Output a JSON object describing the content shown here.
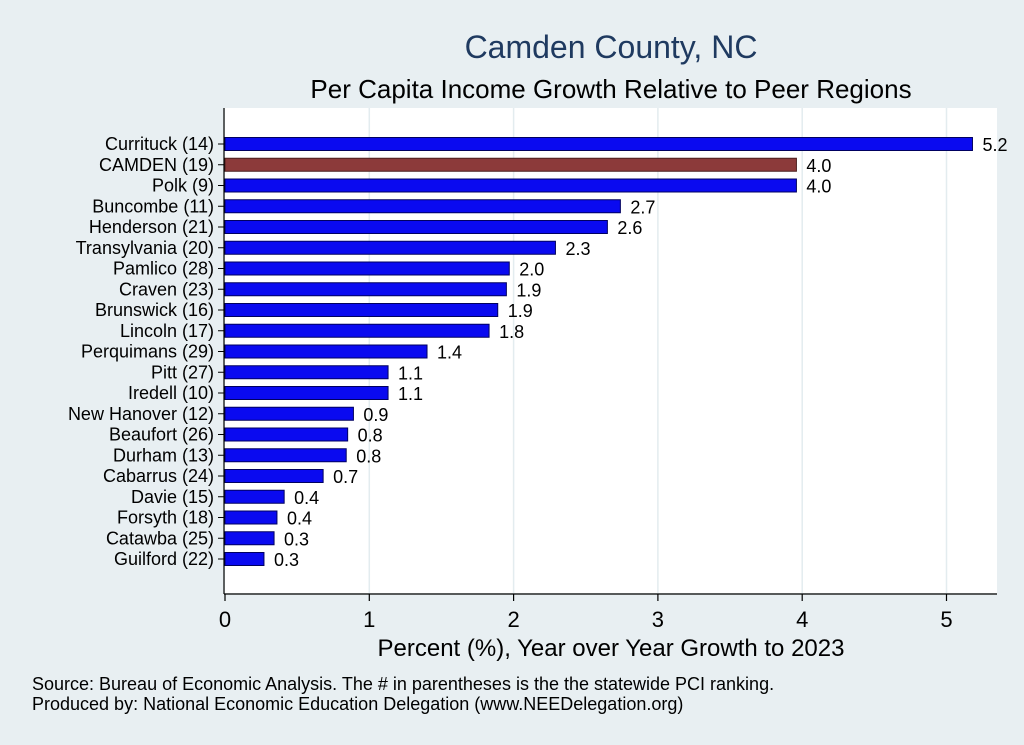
{
  "chart_data": {
    "type": "bar",
    "orientation": "horizontal",
    "title": "Camden County, NC",
    "subtitle": "Per Capita Income Growth Relative to Peer Regions",
    "xlabel": "Percent (%), Year over Year Growth to 2023",
    "xlim": [
      0,
      5.35
    ],
    "xticks": [
      "0",
      "1",
      "2",
      "3",
      "4",
      "5"
    ],
    "grid": true,
    "categories": [
      "Currituck (14)",
      "CAMDEN (19)",
      "Polk  (9)",
      "Buncombe (11)",
      "Henderson (21)",
      "Transylvania (20)",
      "Pamlico (28)",
      "Craven (23)",
      "Brunswick (16)",
      "Lincoln (17)",
      "Perquimans (29)",
      "Pitt (27)",
      "Iredell (10)",
      "New Hanover (12)",
      "Beaufort (26)",
      "Durham (13)",
      "Cabarrus (24)",
      "Davie (15)",
      "Forsyth (18)",
      "Catawba (25)",
      "Guilford (22)"
    ],
    "values": [
      5.18,
      3.96,
      3.96,
      2.74,
      2.65,
      2.29,
      1.97,
      1.95,
      1.89,
      1.83,
      1.4,
      1.13,
      1.13,
      0.89,
      0.85,
      0.84,
      0.68,
      0.41,
      0.36,
      0.34,
      0.27
    ],
    "value_labels": [
      "5.2",
      "4.0",
      "4.0",
      "2.7",
      "2.6",
      "2.3",
      "2.0",
      "1.9",
      "1.9",
      "1.8",
      "1.4",
      "1.1",
      "1.1",
      "0.9",
      "0.8",
      "0.8",
      "0.7",
      "0.4",
      "0.4",
      "0.3",
      "0.3"
    ],
    "highlight_category": "CAMDEN (19)",
    "colors": {
      "bar": "#0a0af0",
      "highlight": "#8c3a3a",
      "bar_edge": "#000060",
      "background": "#e8eff2",
      "plot_background": "#ffffff",
      "grid": "#e3ecef",
      "title": "#1f3a60"
    },
    "notes": [
      "Source: Bureau of Economic Analysis. The # in parentheses is the the statewide PCI ranking.",
      "Produced by: National Economic Education Delegation (www.NEEDelegation.org)"
    ]
  }
}
